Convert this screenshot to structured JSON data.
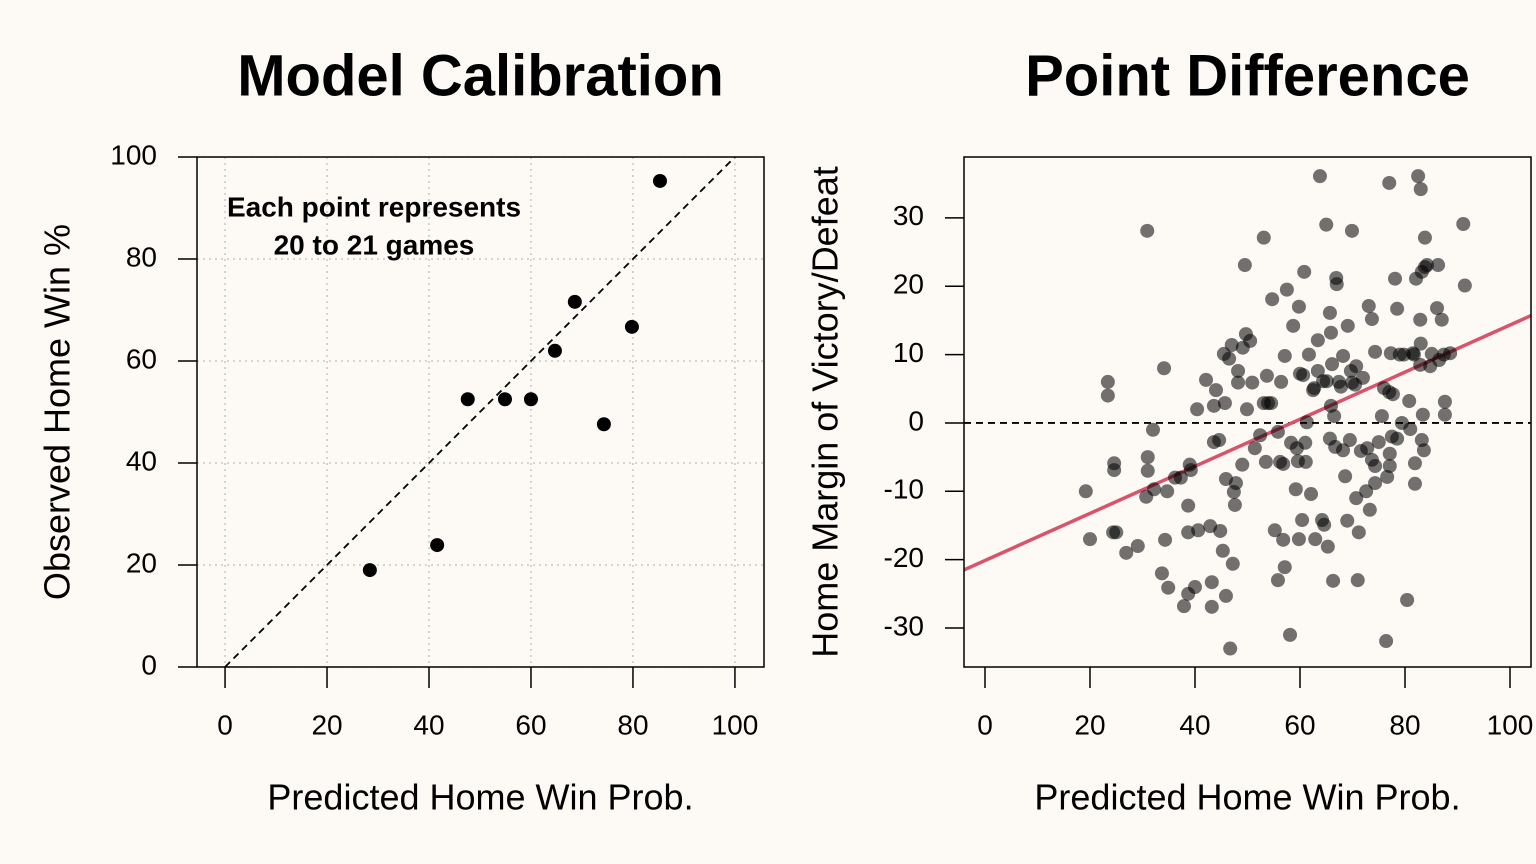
{
  "chart_data": [
    {
      "type": "scatter",
      "title": "Model Calibration",
      "xlabel": "Predicted Home Win Prob.",
      "ylabel": "Observed Home Win %",
      "annotation": [
        "Each point represents",
        "20 to 21 games"
      ],
      "xlim": [
        -5.5,
        105.7
      ],
      "ylim": [
        0,
        100
      ],
      "xticks": [
        0,
        20,
        40,
        60,
        80,
        100
      ],
      "yticks": [
        0,
        20,
        40,
        60,
        80,
        100
      ],
      "grid": true,
      "ref_line": {
        "x": [
          0,
          100
        ],
        "y": [
          0,
          100
        ]
      },
      "series": [
        {
          "color": "#000000",
          "opacity": 1,
          "x": [
            28.4,
            41.6,
            47.6,
            54.9,
            60.0,
            64.7,
            68.6,
            74.3,
            79.8,
            85.3
          ],
          "values": [
            19.0,
            23.9,
            52.5,
            52.5,
            52.5,
            62.0,
            71.6,
            47.6,
            66.7,
            95.3
          ]
        }
      ]
    },
    {
      "type": "scatter",
      "title": "Point Difference",
      "xlabel": "Predicted Home Win Prob.",
      "ylabel": "Home Margin of Victory/Defeat",
      "xlim": [
        -4,
        104
      ],
      "ylim": [
        -35.7,
        38.9
      ],
      "xticks": [
        0,
        20,
        40,
        60,
        80,
        100
      ],
      "yticks": [
        -30,
        -20,
        -10,
        0,
        10,
        20,
        30
      ],
      "grid": false,
      "hline": 0,
      "fit_line": {
        "x": [
          -4,
          104
        ],
        "y": [
          -21.5,
          15.7
        ],
        "color": "#d9536b"
      },
      "series": [
        {
          "color": "#000000",
          "opacity": 0.55,
          "x": [
            19.2,
            20,
            23.4,
            23.4,
            24.6,
            24.6,
            24.4,
            25,
            26.9,
            29.1,
            30.9,
            31,
            31,
            32,
            30.7,
            32.2,
            34.1,
            34.3,
            33.7,
            34.9,
            34.7,
            36.2,
            37.3,
            37.9,
            38.7,
            38.7,
            38.7,
            39,
            39.2,
            40,
            40.4,
            40.6,
            42.1,
            42.9,
            43.2,
            43.2,
            43.6,
            43.6,
            44,
            44.6,
            44.8,
            45.5,
            45.3,
            45.9,
            45.7,
            45.9,
            46.5,
            46.7,
            47,
            47.2,
            47.4,
            47.6,
            47.8,
            48.2,
            48.2,
            49.1,
            49.5,
            49.7,
            49.9,
            49,
            50.5,
            50.9,
            51.4,
            52.4,
            53.1,
            53.1,
            53.5,
            53.9,
            54.5,
            53.7,
            54.7,
            55.2,
            55.8,
            55.8,
            56.2,
            56.8,
            57.1,
            56.8,
            57.1,
            56.4,
            57.5,
            58.1,
            58.3,
            58.7,
            59.2,
            59.4,
            59.6,
            59.8,
            59.8,
            60,
            60.4,
            60.6,
            60.8,
            61,
            61.1,
            61.3,
            61.7,
            62.1,
            62.5,
            62.7,
            62.9,
            63.4,
            63.4,
            63.8,
            64.2,
            64.4,
            64.6,
            65,
            65.1,
            65.3,
            65.7,
            65.7,
            65.9,
            65.9,
            66.1,
            66.3,
            66.5,
            66.7,
            66.9,
            67,
            67.4,
            67.8,
            68.2,
            68.2,
            68.6,
            69,
            69.1,
            69.5,
            69.7,
            69.9,
            69.9,
            70.5,
            70.7,
            70.7,
            71,
            71.2,
            71.6,
            72,
            72.6,
            72.8,
            73.1,
            73.3,
            73.7,
            73.7,
            74.3,
            74.3,
            74.3,
            75,
            75.6,
            76,
            76.4,
            76.6,
            77,
            77,
            77.1,
            77.1,
            77.3,
            77.5,
            77.7,
            78.1,
            78.5,
            78.5,
            79,
            79.4,
            79.8,
            80.4,
            80.8,
            81,
            81.5,
            81.7,
            81.9,
            81.9,
            82.1,
            82.5,
            82.9,
            82.9,
            83,
            83,
            83.2,
            83.2,
            83.4,
            83.6,
            83.8,
            83.8,
            84.2,
            84.8,
            85.1,
            86.1,
            86.3,
            86.5,
            87,
            87.4,
            87.6,
            87.6,
            88.6,
            91.1,
            91.4
          ],
          "values": [
            -10,
            -17,
            6,
            4,
            -5.9,
            -6.9,
            -16,
            -16,
            -19,
            -18,
            28.1,
            -5,
            -7,
            -1,
            -10.8,
            -9.7,
            8,
            -17.1,
            -22,
            -24.1,
            -10,
            -8,
            -8,
            -26.8,
            -25,
            -12.1,
            -16,
            -6.1,
            -6.9,
            -24,
            2,
            -15.7,
            6.3,
            -15.1,
            -23.3,
            -26.9,
            -2.8,
            2.5,
            4.8,
            -2.5,
            -15.8,
            10.1,
            -18.7,
            -25.3,
            2.9,
            -8.2,
            9.4,
            -33,
            11.4,
            -20.6,
            -10.1,
            -12,
            -8.8,
            5.9,
            7.6,
            11,
            23.1,
            13,
            2,
            -6.1,
            12,
            5.9,
            -3.7,
            -1.8,
            27.1,
            2.9,
            -5.7,
            2.9,
            2.9,
            6.9,
            18.1,
            -15.7,
            -23,
            -1.3,
            -5.7,
            -6,
            9.8,
            -17.1,
            -21.1,
            6,
            19.5,
            -31,
            -2.9,
            14.2,
            -9.7,
            -3.7,
            -5.6,
            -17,
            17,
            7.2,
            -14.2,
            7,
            22.1,
            -2.9,
            -5.7,
            0.1,
            10,
            -10.4,
            4.8,
            5.1,
            -17,
            12.1,
            7.6,
            36.1,
            -14.2,
            6.1,
            -14.9,
            29,
            6.1,
            -18.1,
            16.1,
            -2.3,
            13.2,
            2.5,
            8.6,
            -23.1,
            1,
            -3.5,
            21.2,
            20.3,
            6,
            5.3,
            -4,
            9.8,
            -7.8,
            -14.3,
            14.2,
            -2.5,
            7.6,
            28.1,
            5.9,
            5.6,
            8.3,
            -11,
            -23,
            -16,
            -4.1,
            6.6,
            -10,
            -3.7,
            17.1,
            -12.7,
            15.2,
            -5.4,
            10.4,
            -6.3,
            -8.8,
            -2.8,
            1,
            5.1,
            -31.9,
            -7.9,
            35.1,
            4.5,
            -4.5,
            -6.3,
            10.2,
            -2,
            4.2,
            21.1,
            -2.3,
            16.7,
            10,
            0,
            10,
            -25.9,
            3.2,
            -0.9,
            10.2,
            10,
            -5.9,
            -8.9,
            21.1,
            36.1,
            15.1,
            8.5,
            34.2,
            11.6,
            -2.5,
            22.1,
            1.2,
            -4,
            27.1,
            22.8,
            23.1,
            8.3,
            10.1,
            16.8,
            23.1,
            9.2,
            15.1,
            10,
            3.1,
            1.2,
            10.2,
            29.1,
            20.1
          ]
        }
      ]
    }
  ]
}
